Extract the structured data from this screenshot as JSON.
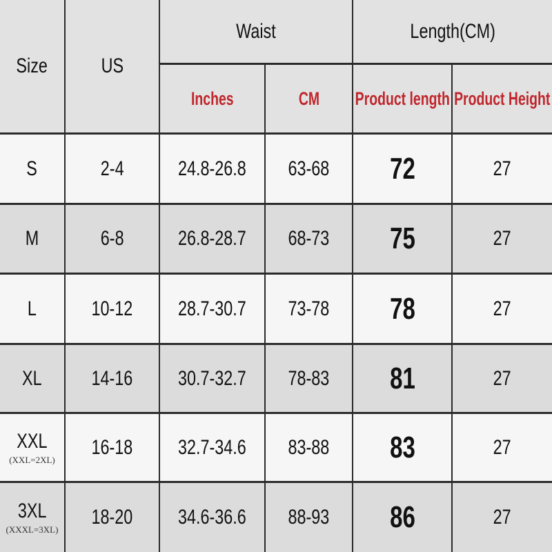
{
  "header": {
    "size": "Size",
    "us": "US",
    "waist": "Waist",
    "length": "Length(CM)",
    "inches": "Inches",
    "cm": "CM",
    "product_length": "Product length",
    "product_height": "Product Height"
  },
  "rows": [
    {
      "size": "S",
      "note": "",
      "us": "2-4",
      "inches": "24.8-26.8",
      "cm": "63-68",
      "length": "72",
      "height": "27"
    },
    {
      "size": "M",
      "note": "",
      "us": "6-8",
      "inches": "26.8-28.7",
      "cm": "68-73",
      "length": "75",
      "height": "27"
    },
    {
      "size": "L",
      "note": "",
      "us": "10-12",
      "inches": "28.7-30.7",
      "cm": "73-78",
      "length": "78",
      "height": "27"
    },
    {
      "size": "XL",
      "note": "",
      "us": "14-16",
      "inches": "30.7-32.7",
      "cm": "78-83",
      "length": "81",
      "height": "27"
    },
    {
      "size": "XXL",
      "note": "(XXL=2XL)",
      "us": "16-18",
      "inches": "32.7-34.6",
      "cm": "83-88",
      "length": "83",
      "height": "27"
    },
    {
      "size": "3XL",
      "note": "(XXXL=3XL)",
      "us": "18-20",
      "inches": "34.6-36.6",
      "cm": "88-93",
      "length": "86",
      "height": "27"
    }
  ],
  "colors": {
    "header_red": "#c0262c",
    "grid": "#2a2a2a",
    "row_gray": "#dcdcdc",
    "row_white": "#f6f6f6"
  }
}
